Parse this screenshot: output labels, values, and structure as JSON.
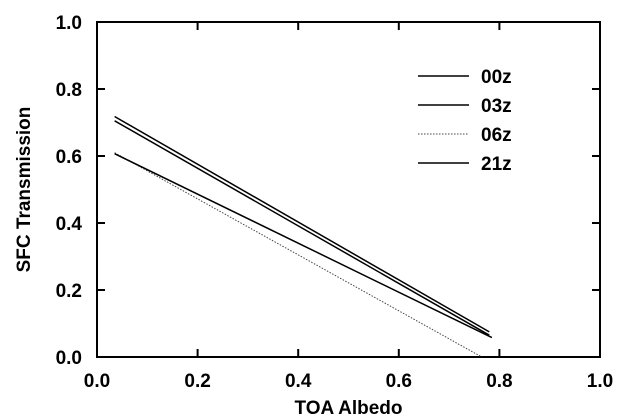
{
  "chart_data": {
    "type": "line",
    "title": "",
    "xlabel": "TOA Albedo",
    "ylabel": "SFC Transmission",
    "xlim": [
      0.0,
      1.0
    ],
    "ylim": [
      0.0,
      1.0
    ],
    "x_ticks": [
      "0.0",
      "0.2",
      "0.4",
      "0.6",
      "0.8",
      "1.0"
    ],
    "y_ticks": [
      "0.0",
      "0.2",
      "0.4",
      "0.6",
      "0.8",
      "1.0"
    ],
    "grid": false,
    "legend_position": "top-right",
    "series": [
      {
        "name": "00z",
        "style": "solid",
        "color": "#000000",
        "x": [
          0.035,
          0.78
        ],
        "y": [
          0.718,
          0.075
        ]
      },
      {
        "name": "03z",
        "style": "solid",
        "color": "#000000",
        "x": [
          0.035,
          0.78
        ],
        "y": [
          0.705,
          0.065
        ]
      },
      {
        "name": "06z",
        "style": "dotted",
        "color": "#444444",
        "x": [
          0.035,
          0.765
        ],
        "y": [
          0.61,
          0.0
        ]
      },
      {
        "name": "21z",
        "style": "solid",
        "color": "#000000",
        "x": [
          0.035,
          0.785
        ],
        "y": [
          0.607,
          0.058
        ]
      }
    ]
  }
}
